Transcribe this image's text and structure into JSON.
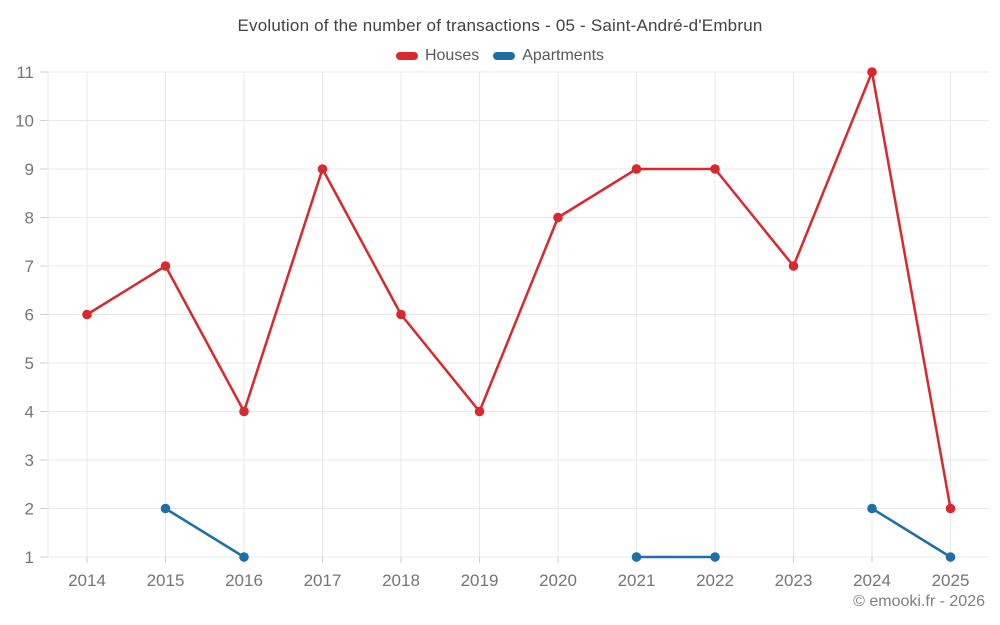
{
  "title": "Evolution of the number of transactions - 05 - Saint-André-d'Embrun",
  "footer": {
    "text": "© emooki.fr - 2026"
  },
  "colors": {
    "houses": "#d9282e",
    "apartments": "#1d6fa5",
    "grid": "#e8e8e8",
    "tick": "#cfcfcf",
    "tick_label": "#757575",
    "title_text": "#424242"
  },
  "chart_data": {
    "type": "line",
    "title": "Evolution of the number of transactions - 05 - Saint-André-d'Embrun",
    "x": [
      "2014",
      "2015",
      "2016",
      "2017",
      "2018",
      "2019",
      "2020",
      "2021",
      "2022",
      "2023",
      "2024",
      "2025"
    ],
    "yticks": [
      1,
      2,
      3,
      4,
      5,
      6,
      7,
      8,
      9,
      10,
      11
    ],
    "ylim": [
      1,
      11
    ],
    "grid": true,
    "legend_position": "top",
    "series": [
      {
        "name": "Houses",
        "color": "#d9282e",
        "values": [
          6,
          7,
          4,
          9,
          6,
          4,
          8,
          9,
          9,
          7,
          11,
          2
        ]
      },
      {
        "name": "Apartments",
        "color": "#1d6fa5",
        "values": [
          null,
          2,
          1,
          null,
          null,
          null,
          null,
          1,
          1,
          null,
          2,
          1
        ]
      }
    ]
  }
}
